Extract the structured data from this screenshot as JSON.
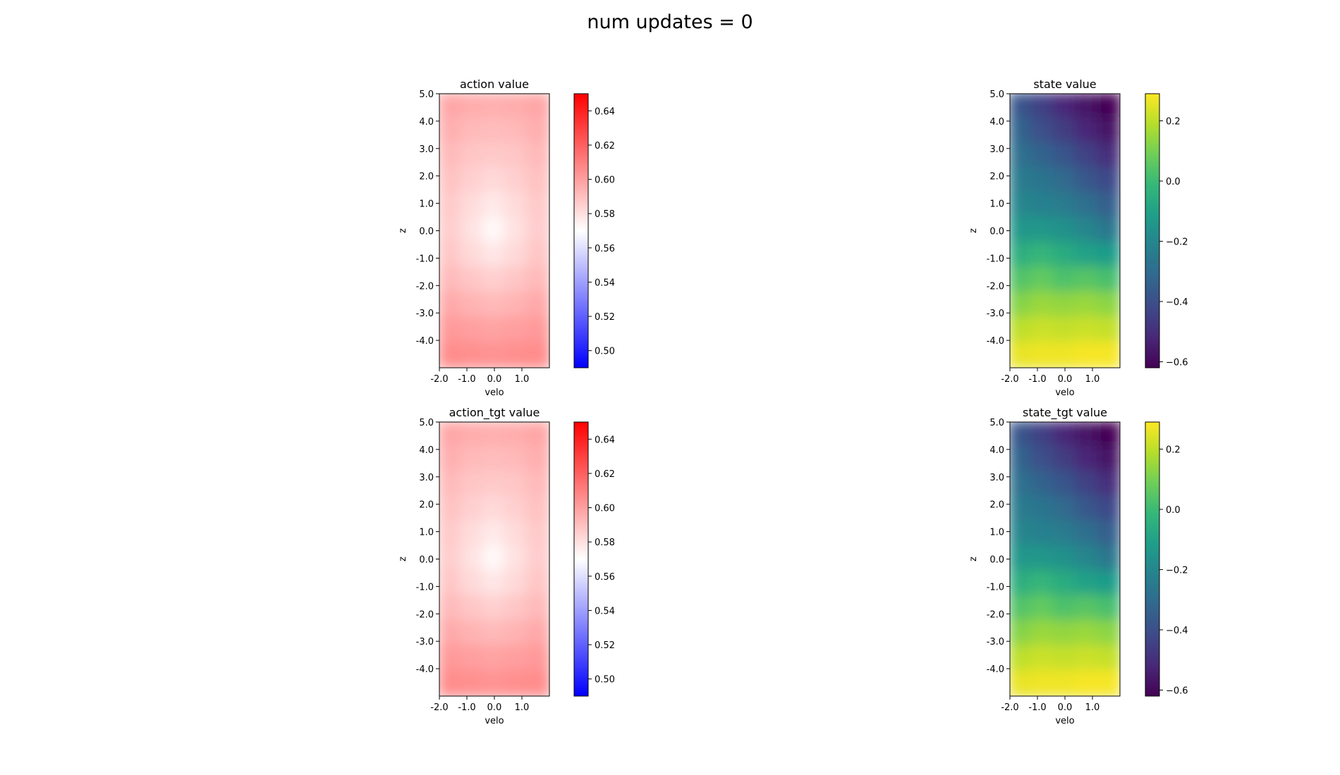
{
  "suptitle": "num updates = 0",
  "chart_data": [
    {
      "type": "heatmap",
      "title": "action value",
      "xlabel": "velo",
      "ylabel": "z",
      "xlim": [
        -2.0,
        2.0
      ],
      "ylim": [
        -5.0,
        5.0
      ],
      "x_ticks": [
        -2.0,
        -1.0,
        0.0,
        1.0
      ],
      "x_tick_labels": [
        "-2.0",
        "-1.0",
        "0.0",
        "1.0"
      ],
      "y_ticks": [
        5.0,
        4.0,
        3.0,
        2.0,
        1.0,
        0.0,
        -1.0,
        -2.0,
        -3.0,
        -4.0
      ],
      "y_tick_labels": [
        "5.0",
        "4.0",
        "3.0",
        "2.0",
        "1.0",
        "0.0",
        "-1.0",
        "-2.0",
        "-3.0",
        "-4.0"
      ],
      "colormap": "bwr",
      "colormap_stops": [
        "#0000ff",
        "#ffffff",
        "#ff0000"
      ],
      "clim": [
        0.49,
        0.65
      ],
      "colorbar_ticks": [
        0.5,
        0.52,
        0.54,
        0.56,
        0.58,
        0.6,
        0.62,
        0.64
      ],
      "colorbar_tick_labels": [
        "0.50",
        "0.52",
        "0.54",
        "0.56",
        "0.58",
        "0.60",
        "0.62",
        "0.64"
      ],
      "grid_x": [
        -2.0,
        -1.0,
        0.0,
        1.0,
        2.0
      ],
      "grid_y": [
        5.0,
        4.0,
        3.0,
        2.0,
        1.0,
        0.0,
        -1.0,
        -2.0,
        -3.0,
        -4.0,
        -5.0
      ],
      "values": [
        [
          0.598,
          0.596,
          0.595,
          0.596,
          0.598
        ],
        [
          0.595,
          0.592,
          0.591,
          0.592,
          0.595
        ],
        [
          0.592,
          0.588,
          0.587,
          0.588,
          0.592
        ],
        [
          0.589,
          0.585,
          0.582,
          0.585,
          0.589
        ],
        [
          0.587,
          0.581,
          0.577,
          0.581,
          0.587
        ],
        [
          0.586,
          0.579,
          0.572,
          0.579,
          0.586
        ],
        [
          0.588,
          0.582,
          0.578,
          0.582,
          0.588
        ],
        [
          0.592,
          0.588,
          0.585,
          0.588,
          0.592
        ],
        [
          0.597,
          0.594,
          0.592,
          0.594,
          0.597
        ],
        [
          0.602,
          0.6,
          0.599,
          0.6,
          0.602
        ],
        [
          0.606,
          0.605,
          0.604,
          0.605,
          0.606
        ]
      ]
    },
    {
      "type": "heatmap",
      "title": "state value",
      "xlabel": "velo",
      "ylabel": "z",
      "xlim": [
        -2.0,
        2.0
      ],
      "ylim": [
        -5.0,
        5.0
      ],
      "x_ticks": [
        -2.0,
        -1.0,
        0.0,
        1.0
      ],
      "x_tick_labels": [
        "-2.0",
        "-1.0",
        "0.0",
        "1.0"
      ],
      "y_ticks": [
        5.0,
        4.0,
        3.0,
        2.0,
        1.0,
        0.0,
        -1.0,
        -2.0,
        -3.0,
        -4.0
      ],
      "y_tick_labels": [
        "5.0",
        "4.0",
        "3.0",
        "2.0",
        "1.0",
        "0.0",
        "-1.0",
        "-2.0",
        "-3.0",
        "-4.0"
      ],
      "colormap": "viridis",
      "colormap_stops": [
        "#440154",
        "#482878",
        "#3e4a89",
        "#31688e",
        "#26828e",
        "#1f9e89",
        "#35b779",
        "#6ece58",
        "#b5de2b",
        "#fde725"
      ],
      "clim": [
        -0.62,
        0.29
      ],
      "colorbar_ticks": [
        0.2,
        0.0,
        -0.2,
        -0.4,
        -0.6
      ],
      "colorbar_tick_labels": [
        "0.2",
        "0.0",
        "−0.2",
        "−0.4",
        "−0.6"
      ],
      "grid_x": [
        -2.0,
        -1.0,
        0.0,
        1.0,
        2.0
      ],
      "grid_y": [
        5.0,
        4.0,
        3.0,
        2.0,
        1.0,
        0.0,
        -1.0,
        -2.0,
        -3.0,
        -4.0,
        -5.0
      ],
      "values": [
        [
          -0.38,
          -0.45,
          -0.52,
          -0.57,
          -0.62
        ],
        [
          -0.33,
          -0.4,
          -0.46,
          -0.52,
          -0.57
        ],
        [
          -0.28,
          -0.33,
          -0.38,
          -0.44,
          -0.5
        ],
        [
          -0.24,
          -0.27,
          -0.31,
          -0.37,
          -0.42
        ],
        [
          -0.2,
          -0.22,
          -0.24,
          -0.29,
          -0.34
        ],
        [
          -0.14,
          -0.14,
          -0.16,
          -0.2,
          -0.26
        ],
        [
          -0.05,
          -0.02,
          -0.06,
          -0.1,
          -0.12
        ],
        [
          0.04,
          0.07,
          0.03,
          0.05,
          0.02
        ],
        [
          0.12,
          0.15,
          0.14,
          0.15,
          0.13
        ],
        [
          0.2,
          0.22,
          0.21,
          0.22,
          0.21
        ],
        [
          0.26,
          0.27,
          0.27,
          0.28,
          0.28
        ]
      ]
    },
    {
      "type": "heatmap",
      "title": "action_tgt value",
      "xlabel": "velo",
      "ylabel": "z",
      "xlim": [
        -2.0,
        2.0
      ],
      "ylim": [
        -5.0,
        5.0
      ],
      "x_ticks": [
        -2.0,
        -1.0,
        0.0,
        1.0
      ],
      "x_tick_labels": [
        "-2.0",
        "-1.0",
        "0.0",
        "1.0"
      ],
      "y_ticks": [
        5.0,
        4.0,
        3.0,
        2.0,
        1.0,
        0.0,
        -1.0,
        -2.0,
        -3.0,
        -4.0
      ],
      "y_tick_labels": [
        "5.0",
        "4.0",
        "3.0",
        "2.0",
        "1.0",
        "0.0",
        "-1.0",
        "-2.0",
        "-3.0",
        "-4.0"
      ],
      "colormap": "bwr",
      "colormap_stops": [
        "#0000ff",
        "#ffffff",
        "#ff0000"
      ],
      "clim": [
        0.49,
        0.65
      ],
      "colorbar_ticks": [
        0.5,
        0.52,
        0.54,
        0.56,
        0.58,
        0.6,
        0.62,
        0.64
      ],
      "colorbar_tick_labels": [
        "0.50",
        "0.52",
        "0.54",
        "0.56",
        "0.58",
        "0.60",
        "0.62",
        "0.64"
      ],
      "grid_x": [
        -2.0,
        -1.0,
        0.0,
        1.0,
        2.0
      ],
      "grid_y": [
        5.0,
        4.0,
        3.0,
        2.0,
        1.0,
        0.0,
        -1.0,
        -2.0,
        -3.0,
        -4.0,
        -5.0
      ],
      "values": [
        [
          0.598,
          0.596,
          0.595,
          0.596,
          0.598
        ],
        [
          0.595,
          0.592,
          0.591,
          0.592,
          0.595
        ],
        [
          0.592,
          0.588,
          0.587,
          0.588,
          0.592
        ],
        [
          0.589,
          0.585,
          0.582,
          0.585,
          0.589
        ],
        [
          0.587,
          0.581,
          0.577,
          0.581,
          0.587
        ],
        [
          0.586,
          0.579,
          0.572,
          0.579,
          0.586
        ],
        [
          0.588,
          0.582,
          0.578,
          0.582,
          0.588
        ],
        [
          0.592,
          0.588,
          0.585,
          0.588,
          0.592
        ],
        [
          0.597,
          0.594,
          0.592,
          0.594,
          0.597
        ],
        [
          0.602,
          0.6,
          0.599,
          0.6,
          0.602
        ],
        [
          0.606,
          0.605,
          0.604,
          0.605,
          0.606
        ]
      ]
    },
    {
      "type": "heatmap",
      "title": "state_tgt value",
      "xlabel": "velo",
      "ylabel": "z",
      "xlim": [
        -2.0,
        2.0
      ],
      "ylim": [
        -5.0,
        5.0
      ],
      "x_ticks": [
        -2.0,
        -1.0,
        0.0,
        1.0
      ],
      "x_tick_labels": [
        "-2.0",
        "-1.0",
        "0.0",
        "1.0"
      ],
      "y_ticks": [
        5.0,
        4.0,
        3.0,
        2.0,
        1.0,
        0.0,
        -1.0,
        -2.0,
        -3.0,
        -4.0
      ],
      "y_tick_labels": [
        "5.0",
        "4.0",
        "3.0",
        "2.0",
        "1.0",
        "0.0",
        "-1.0",
        "-2.0",
        "-3.0",
        "-4.0"
      ],
      "colormap": "viridis",
      "colormap_stops": [
        "#440154",
        "#482878",
        "#3e4a89",
        "#31688e",
        "#26828e",
        "#1f9e89",
        "#35b779",
        "#6ece58",
        "#b5de2b",
        "#fde725"
      ],
      "clim": [
        -0.62,
        0.29
      ],
      "colorbar_ticks": [
        0.2,
        0.0,
        -0.2,
        -0.4,
        -0.6
      ],
      "colorbar_tick_labels": [
        "0.2",
        "0.0",
        "−0.2",
        "−0.4",
        "−0.6"
      ],
      "grid_x": [
        -2.0,
        -1.0,
        0.0,
        1.0,
        2.0
      ],
      "grid_y": [
        5.0,
        4.0,
        3.0,
        2.0,
        1.0,
        0.0,
        -1.0,
        -2.0,
        -3.0,
        -4.0,
        -5.0
      ],
      "values": [
        [
          -0.38,
          -0.45,
          -0.52,
          -0.57,
          -0.62
        ],
        [
          -0.33,
          -0.4,
          -0.46,
          -0.52,
          -0.57
        ],
        [
          -0.28,
          -0.33,
          -0.38,
          -0.44,
          -0.5
        ],
        [
          -0.24,
          -0.27,
          -0.31,
          -0.37,
          -0.42
        ],
        [
          -0.2,
          -0.22,
          -0.24,
          -0.29,
          -0.34
        ],
        [
          -0.14,
          -0.14,
          -0.16,
          -0.2,
          -0.26
        ],
        [
          -0.05,
          -0.02,
          -0.06,
          -0.1,
          -0.12
        ],
        [
          0.04,
          0.07,
          0.03,
          0.05,
          0.02
        ],
        [
          0.12,
          0.15,
          0.14,
          0.15,
          0.13
        ],
        [
          0.2,
          0.22,
          0.21,
          0.22,
          0.21
        ],
        [
          0.26,
          0.27,
          0.27,
          0.28,
          0.28
        ]
      ]
    }
  ]
}
